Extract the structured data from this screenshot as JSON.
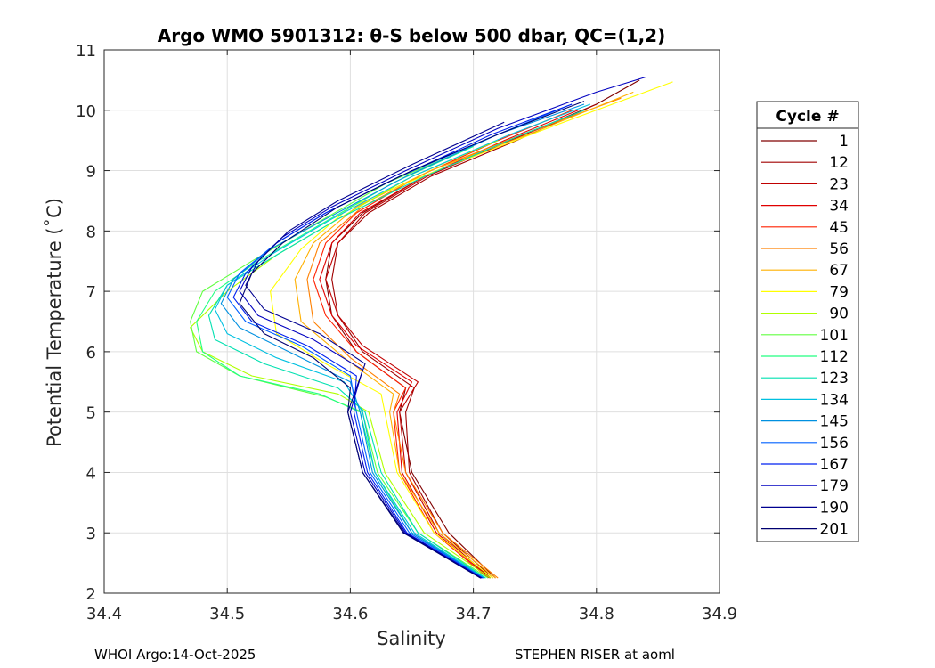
{
  "chart_data": {
    "type": "line",
    "title": "Argo WMO 5901312: θ-S below 500 dbar,  QC=(1,2)",
    "xlabel": "Salinity",
    "ylabel": "Potential Temperature (˚C)",
    "xlim": [
      34.4,
      34.9
    ],
    "ylim": [
      2,
      11
    ],
    "xticks": [
      "34.4",
      "34.5",
      "34.6",
      "34.7",
      "34.8",
      "34.9"
    ],
    "yticks": [
      "2",
      "3",
      "4",
      "5",
      "6",
      "7",
      "8",
      "9",
      "10",
      "11"
    ],
    "grid": true,
    "legend_title": "Cycle #",
    "legend_position": "outside-right",
    "series": [
      {
        "name": "1",
        "color": "#800000",
        "points": [
          [
            34.718,
            2.25
          ],
          [
            34.68,
            3.0
          ],
          [
            34.65,
            4.0
          ],
          [
            34.64,
            5.0
          ],
          [
            34.645,
            5.4
          ],
          [
            34.605,
            6.0
          ],
          [
            34.585,
            6.6
          ],
          [
            34.58,
            7.2
          ],
          [
            34.585,
            7.8
          ],
          [
            34.61,
            8.3
          ],
          [
            34.66,
            8.9
          ],
          [
            34.73,
            9.5
          ],
          [
            34.8,
            10.1
          ],
          [
            34.835,
            10.5
          ]
        ]
      },
      {
        "name": "12",
        "color": "#a00000",
        "points": [
          [
            34.716,
            2.25
          ],
          [
            34.675,
            3.0
          ],
          [
            34.648,
            4.0
          ],
          [
            34.645,
            5.0
          ],
          [
            34.652,
            5.4
          ],
          [
            34.61,
            6.0
          ],
          [
            34.59,
            6.6
          ],
          [
            34.585,
            7.2
          ],
          [
            34.59,
            7.8
          ],
          [
            34.615,
            8.3
          ],
          [
            34.665,
            8.9
          ],
          [
            34.735,
            9.5
          ],
          [
            34.8,
            10.1
          ]
        ]
      },
      {
        "name": "23",
        "color": "#c00000",
        "points": [
          [
            34.714,
            2.25
          ],
          [
            34.672,
            3.0
          ],
          [
            34.645,
            4.0
          ],
          [
            34.64,
            5.0
          ],
          [
            34.655,
            5.5
          ],
          [
            34.61,
            6.1
          ],
          [
            34.59,
            6.6
          ],
          [
            34.58,
            7.2
          ],
          [
            34.59,
            7.8
          ],
          [
            34.612,
            8.3
          ],
          [
            34.662,
            8.9
          ],
          [
            34.73,
            9.5
          ],
          [
            34.79,
            10.0
          ]
        ]
      },
      {
        "name": "34",
        "color": "#e00000",
        "points": [
          [
            34.713,
            2.25
          ],
          [
            34.67,
            3.0
          ],
          [
            34.642,
            4.0
          ],
          [
            34.638,
            5.0
          ],
          [
            34.65,
            5.5
          ],
          [
            34.605,
            6.1
          ],
          [
            34.585,
            6.6
          ],
          [
            34.575,
            7.2
          ],
          [
            34.585,
            7.8
          ],
          [
            34.608,
            8.3
          ],
          [
            34.66,
            8.9
          ],
          [
            34.725,
            9.5
          ],
          [
            34.785,
            10.0
          ]
        ]
      },
      {
        "name": "45",
        "color": "#ff2000",
        "points": [
          [
            34.712,
            2.25
          ],
          [
            34.668,
            3.0
          ],
          [
            34.64,
            4.0
          ],
          [
            34.635,
            5.0
          ],
          [
            34.645,
            5.4
          ],
          [
            34.605,
            6.0
          ],
          [
            34.58,
            6.6
          ],
          [
            34.57,
            7.2
          ],
          [
            34.58,
            7.8
          ],
          [
            34.605,
            8.3
          ],
          [
            34.655,
            8.9
          ],
          [
            34.72,
            9.5
          ],
          [
            34.78,
            10.0
          ]
        ]
      },
      {
        "name": "56",
        "color": "#ff8000",
        "points": [
          [
            34.72,
            2.25
          ],
          [
            34.675,
            3.0
          ],
          [
            34.645,
            4.0
          ],
          [
            34.635,
            5.0
          ],
          [
            34.64,
            5.3
          ],
          [
            34.6,
            5.9
          ],
          [
            34.57,
            6.5
          ],
          [
            34.565,
            7.2
          ],
          [
            34.575,
            7.8
          ],
          [
            34.61,
            8.4
          ],
          [
            34.665,
            9.0
          ],
          [
            34.74,
            9.6
          ],
          [
            34.82,
            10.2
          ]
        ]
      },
      {
        "name": "67",
        "color": "#ffb000",
        "points": [
          [
            34.718,
            2.25
          ],
          [
            34.672,
            3.0
          ],
          [
            34.64,
            4.0
          ],
          [
            34.632,
            5.0
          ],
          [
            34.635,
            5.3
          ],
          [
            34.595,
            5.9
          ],
          [
            34.56,
            6.5
          ],
          [
            34.555,
            7.2
          ],
          [
            34.57,
            7.8
          ],
          [
            34.605,
            8.4
          ],
          [
            34.665,
            9.0
          ],
          [
            34.745,
            9.6
          ],
          [
            34.83,
            10.3
          ]
        ]
      },
      {
        "name": "79",
        "color": "#ffff00",
        "points": [
          [
            34.716,
            2.25
          ],
          [
            34.668,
            3.0
          ],
          [
            34.638,
            4.0
          ],
          [
            34.628,
            5.0
          ],
          [
            34.625,
            5.3
          ],
          [
            34.58,
            5.8
          ],
          [
            34.54,
            6.3
          ],
          [
            34.535,
            7.0
          ],
          [
            34.56,
            7.7
          ],
          [
            34.6,
            8.4
          ],
          [
            34.67,
            9.0
          ],
          [
            34.76,
            9.7
          ],
          [
            34.862,
            10.47
          ]
        ]
      },
      {
        "name": "90",
        "color": "#b0ff00",
        "points": [
          [
            34.714,
            2.25
          ],
          [
            34.66,
            3.0
          ],
          [
            34.628,
            4.0
          ],
          [
            34.615,
            5.0
          ],
          [
            34.59,
            5.3
          ],
          [
            34.52,
            5.6
          ],
          [
            34.48,
            6.0
          ],
          [
            34.47,
            6.4
          ],
          [
            34.5,
            7.0
          ],
          [
            34.54,
            7.6
          ],
          [
            34.59,
            8.2
          ],
          [
            34.65,
            8.9
          ],
          [
            34.72,
            9.5
          ]
        ]
      },
      {
        "name": "101",
        "color": "#60ff40",
        "points": [
          [
            34.712,
            2.25
          ],
          [
            34.655,
            3.0
          ],
          [
            34.622,
            4.0
          ],
          [
            34.61,
            5.0
          ],
          [
            34.58,
            5.25
          ],
          [
            34.51,
            5.6
          ],
          [
            34.475,
            6.0
          ],
          [
            34.47,
            6.5
          ],
          [
            34.48,
            7.0
          ],
          [
            34.52,
            7.5
          ],
          [
            34.57,
            8.1
          ],
          [
            34.63,
            8.8
          ],
          [
            34.7,
            9.4
          ]
        ]
      },
      {
        "name": "112",
        "color": "#20ff80",
        "points": [
          [
            34.71,
            2.25
          ],
          [
            34.65,
            3.0
          ],
          [
            34.62,
            4.0
          ],
          [
            34.608,
            5.0
          ],
          [
            34.575,
            5.3
          ],
          [
            34.51,
            5.6
          ],
          [
            34.48,
            6.0
          ],
          [
            34.475,
            6.5
          ],
          [
            34.49,
            7.0
          ],
          [
            34.525,
            7.5
          ],
          [
            34.575,
            8.1
          ],
          [
            34.635,
            8.8
          ],
          [
            34.7,
            9.4
          ]
        ]
      },
      {
        "name": "123",
        "color": "#00e0b0",
        "points": [
          [
            34.71,
            2.25
          ],
          [
            34.655,
            3.0
          ],
          [
            34.625,
            4.0
          ],
          [
            34.612,
            5.0
          ],
          [
            34.59,
            5.4
          ],
          [
            34.53,
            5.8
          ],
          [
            34.49,
            6.2
          ],
          [
            34.485,
            6.6
          ],
          [
            34.5,
            7.1
          ],
          [
            34.54,
            7.6
          ],
          [
            34.59,
            8.2
          ],
          [
            34.66,
            8.9
          ],
          [
            34.74,
            9.6
          ],
          [
            34.79,
            10.0
          ]
        ]
      },
      {
        "name": "134",
        "color": "#00c0e0",
        "points": [
          [
            34.709,
            2.25
          ],
          [
            34.652,
            3.0
          ],
          [
            34.62,
            4.0
          ],
          [
            34.61,
            5.0
          ],
          [
            34.595,
            5.5
          ],
          [
            34.54,
            5.9
          ],
          [
            34.5,
            6.3
          ],
          [
            34.49,
            6.7
          ],
          [
            34.5,
            7.1
          ],
          [
            34.535,
            7.6
          ],
          [
            34.585,
            8.2
          ],
          [
            34.65,
            8.9
          ],
          [
            34.73,
            9.6
          ],
          [
            34.795,
            10.1
          ]
        ]
      },
      {
        "name": "145",
        "color": "#0090e0",
        "points": [
          [
            34.708,
            2.25
          ],
          [
            34.65,
            3.0
          ],
          [
            34.618,
            4.0
          ],
          [
            34.608,
            5.0
          ],
          [
            34.6,
            5.5
          ],
          [
            34.55,
            6.0
          ],
          [
            34.51,
            6.4
          ],
          [
            34.495,
            6.8
          ],
          [
            34.505,
            7.2
          ],
          [
            34.535,
            7.7
          ],
          [
            34.58,
            8.2
          ],
          [
            34.645,
            8.9
          ],
          [
            34.72,
            9.6
          ],
          [
            34.79,
            10.1
          ]
        ]
      },
      {
        "name": "156",
        "color": "#0060ff",
        "points": [
          [
            34.708,
            2.25
          ],
          [
            34.648,
            3.0
          ],
          [
            34.616,
            4.0
          ],
          [
            34.605,
            5.0
          ],
          [
            34.6,
            5.6
          ],
          [
            34.56,
            6.1
          ],
          [
            34.515,
            6.5
          ],
          [
            34.5,
            6.9
          ],
          [
            34.51,
            7.3
          ],
          [
            34.54,
            7.8
          ],
          [
            34.58,
            8.3
          ],
          [
            34.64,
            8.9
          ],
          [
            34.72,
            9.6
          ],
          [
            34.78,
            10.1
          ]
        ]
      },
      {
        "name": "167",
        "color": "#0020f0",
        "points": [
          [
            34.707,
            2.25
          ],
          [
            34.646,
            3.0
          ],
          [
            34.614,
            4.0
          ],
          [
            34.603,
            5.0
          ],
          [
            34.605,
            5.6
          ],
          [
            34.565,
            6.1
          ],
          [
            34.52,
            6.5
          ],
          [
            34.505,
            6.9
          ],
          [
            34.515,
            7.3
          ],
          [
            34.54,
            7.8
          ],
          [
            34.58,
            8.3
          ],
          [
            34.64,
            8.9
          ],
          [
            34.715,
            9.6
          ],
          [
            34.78,
            10.1
          ]
        ]
      },
      {
        "name": "179",
        "color": "#0000c0",
        "points": [
          [
            34.707,
            2.25
          ],
          [
            34.645,
            3.0
          ],
          [
            34.612,
            4.0
          ],
          [
            34.6,
            5.0
          ],
          [
            34.61,
            5.7
          ],
          [
            34.57,
            6.2
          ],
          [
            34.525,
            6.6
          ],
          [
            34.51,
            7.0
          ],
          [
            34.52,
            7.4
          ],
          [
            34.545,
            7.9
          ],
          [
            34.585,
            8.4
          ],
          [
            34.645,
            9.0
          ],
          [
            34.72,
            9.7
          ],
          [
            34.8,
            10.3
          ],
          [
            34.84,
            10.55
          ]
        ]
      },
      {
        "name": "190",
        "color": "#000090",
        "points": [
          [
            34.706,
            2.25
          ],
          [
            34.644,
            3.0
          ],
          [
            34.61,
            4.0
          ],
          [
            34.598,
            5.0
          ],
          [
            34.612,
            5.8
          ],
          [
            34.575,
            6.3
          ],
          [
            34.53,
            6.7
          ],
          [
            34.515,
            7.1
          ],
          [
            34.525,
            7.5
          ],
          [
            34.55,
            8.0
          ],
          [
            34.59,
            8.5
          ],
          [
            34.65,
            9.1
          ],
          [
            34.725,
            9.8
          ]
        ]
      },
      {
        "name": "201",
        "color": "#000070",
        "points": [
          [
            34.706,
            2.25
          ],
          [
            34.643,
            3.0
          ],
          [
            34.61,
            4.0
          ],
          [
            34.598,
            5.0
          ],
          [
            34.6,
            5.4
          ],
          [
            34.57,
            5.9
          ],
          [
            34.53,
            6.3
          ],
          [
            34.51,
            6.8
          ],
          [
            34.52,
            7.3
          ],
          [
            34.545,
            7.8
          ],
          [
            34.59,
            8.4
          ],
          [
            34.65,
            9.0
          ],
          [
            34.72,
            9.6
          ],
          [
            34.79,
            10.15
          ]
        ]
      }
    ]
  },
  "footer": {
    "left": "WHOI Argo:14-Oct-2025",
    "right": "STEPHEN RISER at aoml"
  }
}
